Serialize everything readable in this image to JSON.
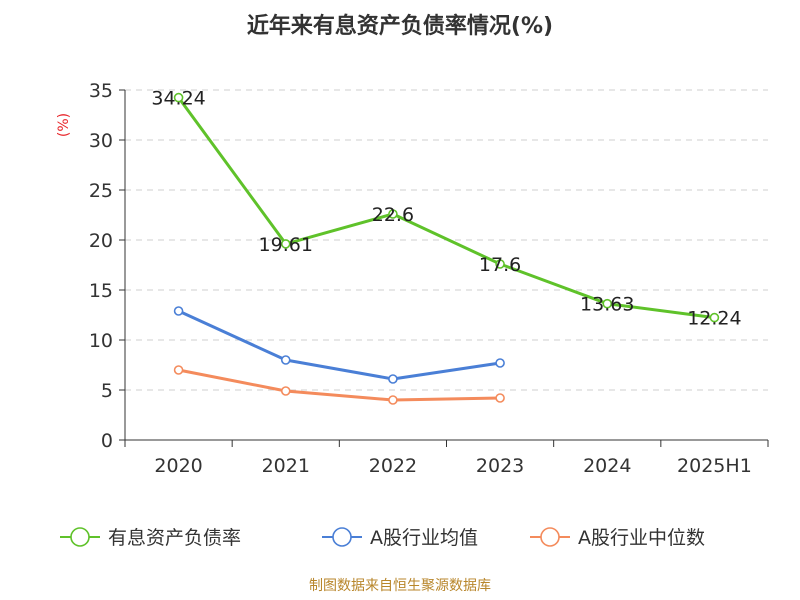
{
  "chart_data": {
    "type": "line",
    "title": "近年来有息资产负债率情况(%)",
    "ylabel": "(%)",
    "xlabel": "",
    "categories": [
      "2020",
      "2021",
      "2022",
      "2023",
      "2024",
      "2025H1"
    ],
    "ylim": [
      0,
      35
    ],
    "yticks": [
      0,
      5,
      10,
      15,
      20,
      25,
      30,
      35
    ],
    "grid": true,
    "legend_position": "bottom",
    "series": [
      {
        "name": "有息资产负债率",
        "color": "#5fc22a",
        "values": [
          34.24,
          19.61,
          22.6,
          17.6,
          13.63,
          12.24
        ],
        "labels": [
          "34.24",
          "19.61",
          "22.6",
          "17.6",
          "13.63",
          "12.24"
        ]
      },
      {
        "name": "A股行业均值",
        "color": "#4a7fd6",
        "values": [
          12.9,
          8.0,
          6.1,
          7.7,
          null,
          null
        ]
      },
      {
        "name": "A股行业中位数",
        "color": "#f48b5c",
        "values": [
          7.0,
          4.9,
          4.0,
          4.2,
          null,
          null
        ]
      }
    ],
    "source": "制图数据来自恒生聚源数据库"
  }
}
